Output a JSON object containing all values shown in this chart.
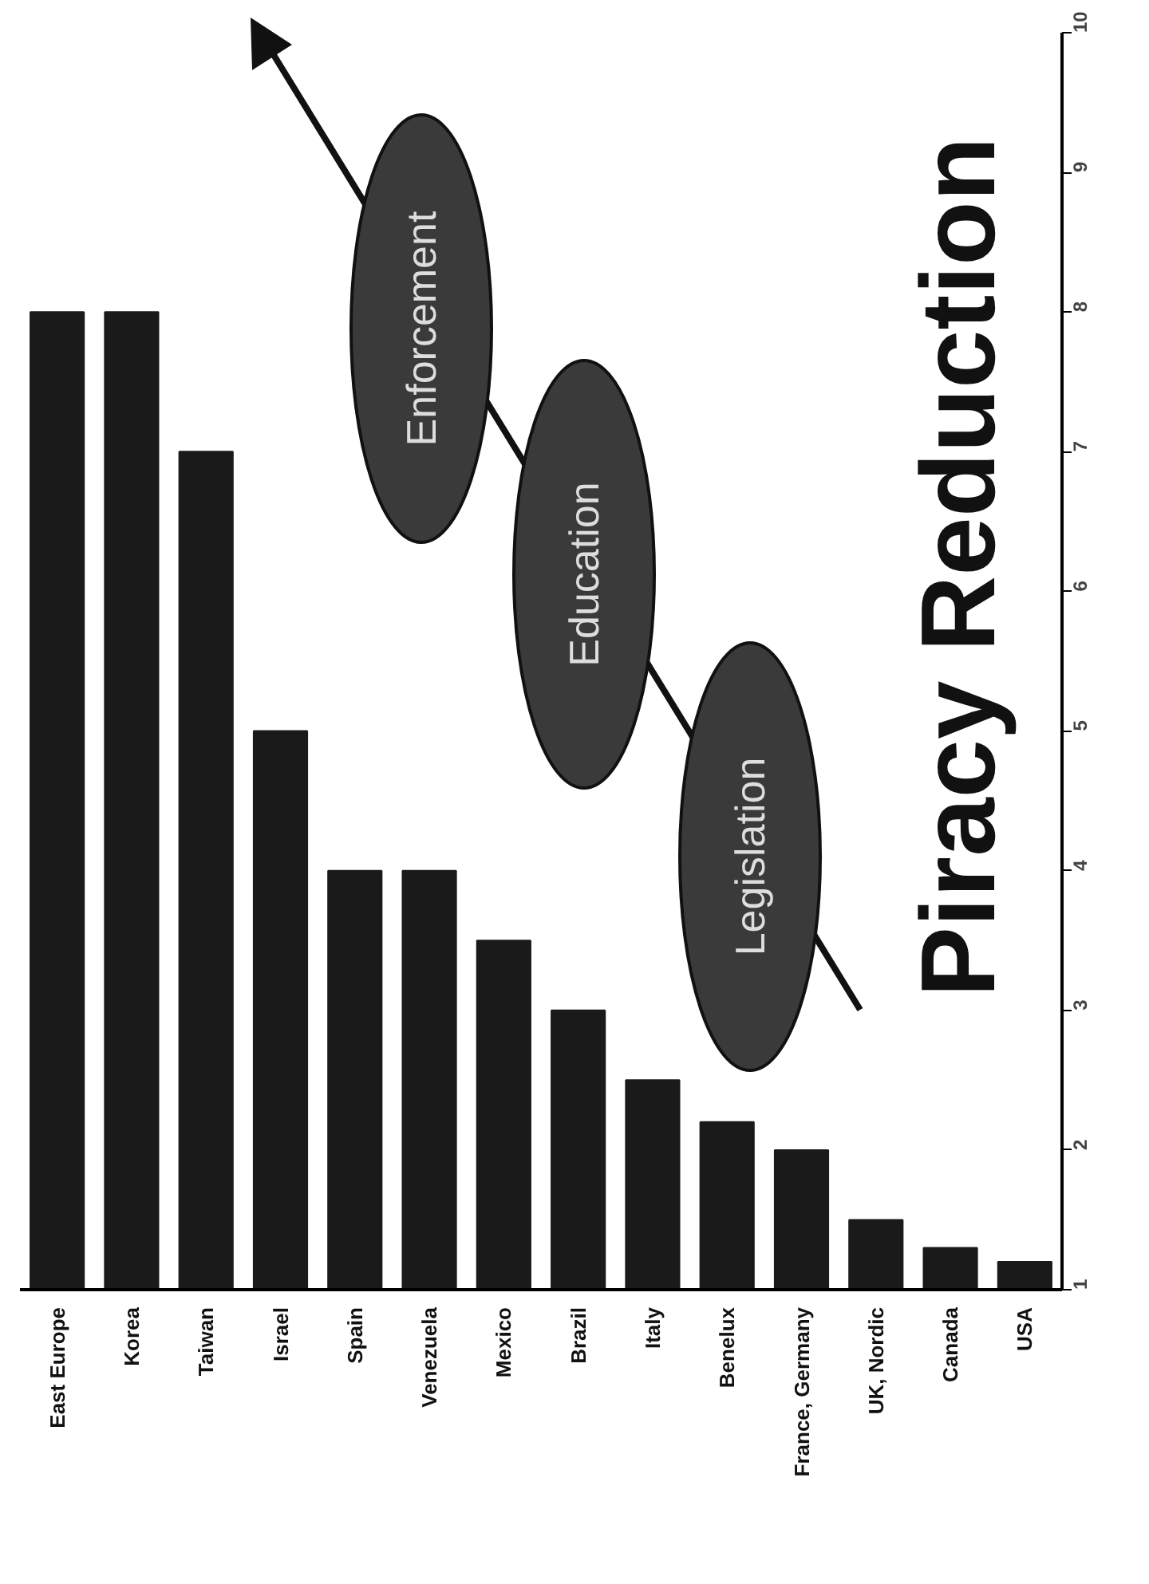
{
  "chart_data": {
    "type": "bar",
    "title": "Piracy Reduction",
    "categories": [
      "East Europe",
      "Korea",
      "Taiwan",
      "Israel",
      "Spain",
      "Venezuela",
      "Mexico",
      "Brazil",
      "Italy",
      "Benelux",
      "France, Germany",
      "UK, Nordic",
      "Canada",
      "USA"
    ],
    "values": [
      8,
      8,
      7,
      5,
      4,
      4,
      3.5,
      3,
      2.5,
      2.2,
      2,
      1.5,
      1.3,
      1.2
    ],
    "color": "#1a1a1a",
    "ylim": [
      1,
      10
    ],
    "yticks": [
      1,
      2,
      3,
      4,
      5,
      6,
      7,
      8,
      9,
      10
    ],
    "grid": false,
    "annotations": [
      "Legislation",
      "Education",
      "Enforcement"
    ]
  }
}
